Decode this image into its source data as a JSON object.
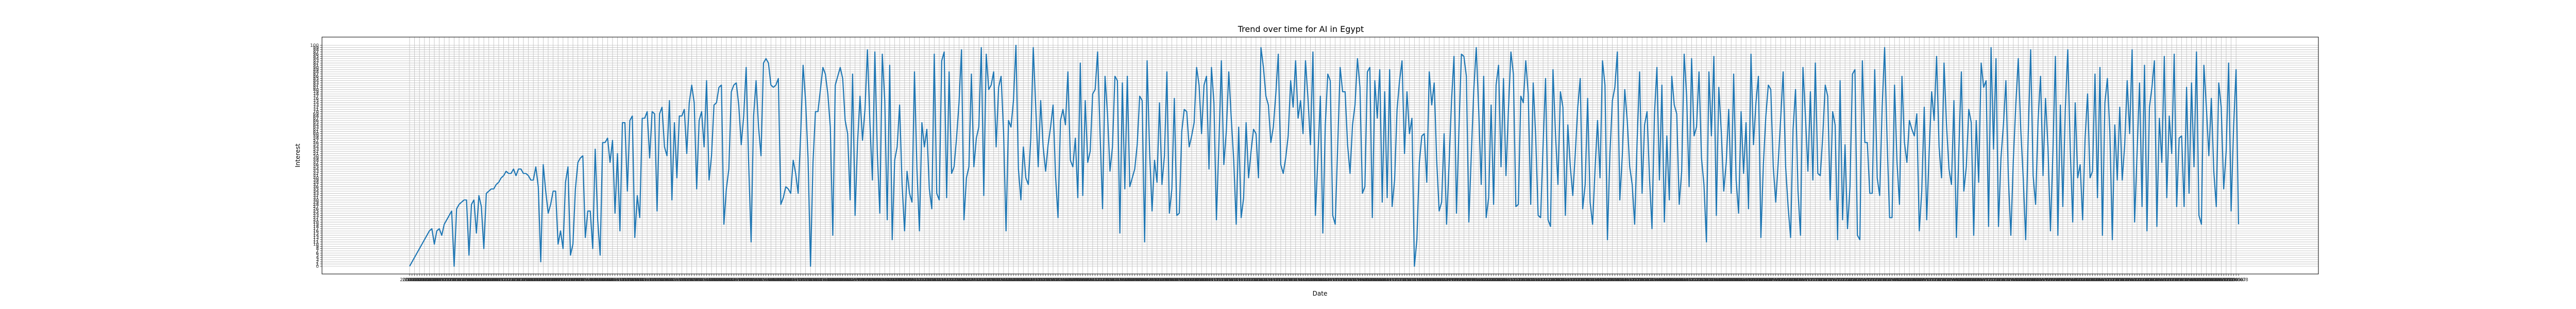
{
  "chart_data": {
    "type": "line",
    "title": "Trend over time for AI in Egypt",
    "xlabel": "Date",
    "ylabel": "Interest",
    "grid": true,
    "legend": "none",
    "color": "#1f77b4",
    "x_axis_kind": "date",
    "x_start": "2004-01",
    "x_end": "2023-07",
    "y_values": [
      0,
      2,
      4,
      6,
      8,
      10,
      12,
      14,
      16,
      17,
      10,
      16,
      17,
      14,
      19,
      21,
      23,
      25,
      0,
      26,
      28,
      29,
      30,
      30,
      5,
      28,
      30,
      15,
      32,
      27,
      8,
      33,
      34,
      35,
      35,
      37,
      38,
      40,
      41,
      43,
      42,
      42,
      44,
      41,
      44,
      44,
      42,
      42,
      41,
      39,
      39,
      45,
      36,
      2,
      46,
      34,
      24,
      28,
      34,
      34,
      10,
      16,
      8,
      38,
      45,
      5,
      10,
      35,
      47,
      49,
      50,
      13,
      25,
      25,
      8,
      53,
      21,
      5,
      56,
      56,
      58,
      47,
      57,
      24,
      51,
      16,
      65,
      65,
      34,
      66,
      68,
      13,
      32,
      22,
      67,
      67,
      70,
      49,
      70,
      69,
      25,
      69,
      72,
      54,
      50,
      75,
      30,
      65,
      40,
      68,
      68,
      71,
      51,
      74,
      82,
      74,
      35,
      66,
      70,
      54,
      84,
      39,
      50,
      73,
      74,
      81,
      82,
      19,
      35,
      44,
      79,
      82,
      83,
      73,
      55,
      68,
      90,
      47,
      11,
      68,
      84,
      63,
      50,
      92,
      94,
      92,
      82,
      81,
      82,
      85,
      28,
      31,
      36,
      35,
      33,
      48,
      42,
      33,
      59,
      91,
      75,
      49,
      0,
      47,
      70,
      70,
      80,
      90,
      87,
      78,
      63,
      14,
      82,
      86,
      90,
      85,
      66,
      60,
      30,
      87,
      23,
      56,
      77,
      57,
      71,
      98,
      65,
      39,
      97,
      51,
      24,
      96,
      75,
      21,
      91,
      12,
      48,
      54,
      73,
      37,
      16,
      43,
      33,
      29,
      88,
      44,
      16,
      65,
      54,
      62,
      35,
      26,
      96,
      33,
      30,
      93,
      97,
      31,
      88,
      42,
      45,
      58,
      74,
      98,
      21,
      40,
      45,
      87,
      45,
      58,
      63,
      99,
      32,
      96,
      80,
      82,
      88,
      54,
      81,
      86,
      61,
      16,
      66,
      63,
      75,
      100,
      44,
      30,
      54,
      40,
      37,
      58,
      99,
      72,
      45,
      75,
      54,
      43,
      55,
      63,
      73,
      41,
      22,
      66,
      71,
      64,
      88,
      48,
      45,
      58,
      31,
      92,
      32,
      75,
      47,
      52,
      78,
      80,
      97,
      60,
      26,
      86,
      69,
      43,
      54,
      86,
      84,
      15,
      83,
      35,
      86,
      36,
      40,
      44,
      55,
      77,
      75,
      11,
      93,
      52,
      25,
      48,
      38,
      74,
      37,
      50,
      88,
      24,
      35,
      76,
      23,
      24,
      61,
      71,
      70,
      54,
      59,
      65,
      90,
      82,
      60,
      82,
      86,
      44,
      90,
      74,
      21,
      55,
      93,
      46,
      61,
      88,
      67,
      48,
      19,
      63,
      22,
      31,
      65,
      40,
      52,
      62,
      60,
      40,
      99,
      90,
      77,
      73,
      56,
      63,
      78,
      96,
      46,
      42,
      49,
      59,
      84,
      72,
      93,
      67,
      75,
      60,
      93,
      76,
      55,
      97,
      23,
      49,
      77,
      15,
      64,
      87,
      84,
      23,
      19,
      54,
      90,
      79,
      79,
      55,
      42,
      64,
      73,
      94,
      81,
      33,
      36,
      88,
      90,
      22,
      84,
      67,
      89,
      29,
      79,
      31,
      89,
      27,
      39,
      71,
      84,
      93,
      51,
      79,
      60,
      67,
      0,
      12,
      47,
      59,
      60,
      38,
      88,
      73,
      83,
      48,
      25,
      29,
      60,
      19,
      46,
      75,
      95,
      24,
      62,
      96,
      95,
      86,
      20,
      51,
      80,
      99,
      70,
      37,
      86,
      22,
      31,
      73,
      28,
      82,
      91,
      45,
      85,
      41,
      71,
      97,
      87,
      27,
      28,
      77,
      74,
      93,
      78,
      28,
      83,
      59,
      23,
      22,
      55,
      85,
      21,
      18,
      89,
      60,
      37,
      79,
      72,
      23,
      64,
      45,
      32,
      51,
      72,
      85,
      26,
      37,
      76,
      29,
      19,
      44,
      66,
      40,
      93,
      82,
      12,
      51,
      75,
      81,
      97,
      30,
      50,
      80,
      66,
      45,
      37,
      19,
      57,
      88,
      33,
      64,
      70,
      40,
      17,
      69,
      90,
      39,
      82,
      20,
      59,
      30,
      86,
      73,
      69,
      28,
      43,
      96,
      77,
      36,
      94,
      59,
      63,
      88,
      49,
      37,
      11,
      88,
      59,
      95,
      23,
      81,
      61,
      34,
      47,
      71,
      33,
      87,
      39,
      24,
      70,
      42,
      65,
      26,
      96,
      55,
      74,
      86,
      13,
      46,
      68,
      82,
      80,
      45,
      29,
      47,
      67,
      88,
      45,
      27,
      13,
      62,
      80,
      34,
      14,
      90,
      68,
      43,
      79,
      39,
      92,
      42,
      41,
      59,
      82,
      77,
      30,
      70,
      64,
      12,
      84,
      21,
      55,
      17,
      36,
      87,
      89,
      14,
      12,
      93,
      56,
      56,
      33,
      33,
      89,
      40,
      32,
      72,
      99,
      57,
      22,
      22,
      82,
      47,
      28,
      86,
      56,
      47,
      66,
      62,
      59,
      69,
      16,
      34,
      72,
      21,
      52,
      79,
      66,
      95,
      54,
      40,
      92,
      64,
      44,
      37,
      75,
      13,
      53,
      88,
      34,
      45,
      71,
      65,
      14,
      66,
      38,
      92,
      81,
      84,
      18,
      99,
      53,
      94,
      18,
      49,
      64,
      84,
      40,
      14,
      48,
      73,
      94,
      62,
      40,
      12,
      59,
      98,
      41,
      28,
      66,
      86,
      41,
      76,
      54,
      16,
      52,
      95,
      14,
      73,
      27,
      71,
      98,
      53,
      20,
      74,
      40,
      46,
      21,
      58,
      78,
      40,
      43,
      87,
      31,
      90,
      14,
      74,
      85,
      61,
      12,
      64,
      39,
      72,
      39,
      55,
      84,
      60,
      98,
      20,
      51,
      83,
      27,
      91,
      16,
      72,
      81,
      93,
      18,
      67,
      47,
      95,
      31,
      68,
      51,
      96,
      27,
      58,
      59,
      27,
      81,
      33,
      83,
      45,
      97,
      23,
      19,
      91,
      72,
      50,
      76,
      43,
      27,
      83,
      72,
      35,
      52,
      92,
      25,
      63,
      89,
      19
    ],
    "ylim": [
      0,
      100
    ]
  }
}
